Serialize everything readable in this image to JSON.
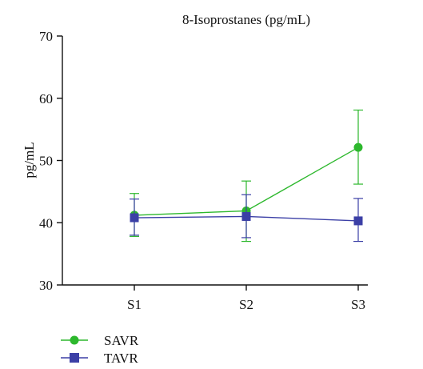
{
  "chart_data": {
    "type": "line",
    "title": "8-Isoprostanes (pg/mL)",
    "xlabel": "",
    "ylabel": "pg/mL",
    "categories": [
      "S1",
      "S2",
      "S3"
    ],
    "ylim": [
      30,
      70
    ],
    "yticks": [
      30,
      40,
      50,
      60,
      70
    ],
    "grid": false,
    "legend_position": "bottom-left",
    "series": [
      {
        "name": "SAVR",
        "color": "#2db82d",
        "marker": "circle",
        "values": [
          41.2,
          41.9,
          52.1
        ],
        "error_low": [
          37.8,
          37.0,
          46.2
        ],
        "error_high": [
          44.7,
          46.7,
          58.1
        ]
      },
      {
        "name": "TAVR",
        "color": "#3b3fa6",
        "marker": "square",
        "values": [
          40.8,
          41.0,
          40.3
        ],
        "error_low": [
          38.0,
          37.6,
          37.0
        ],
        "error_high": [
          43.8,
          44.5,
          43.9
        ]
      }
    ]
  }
}
